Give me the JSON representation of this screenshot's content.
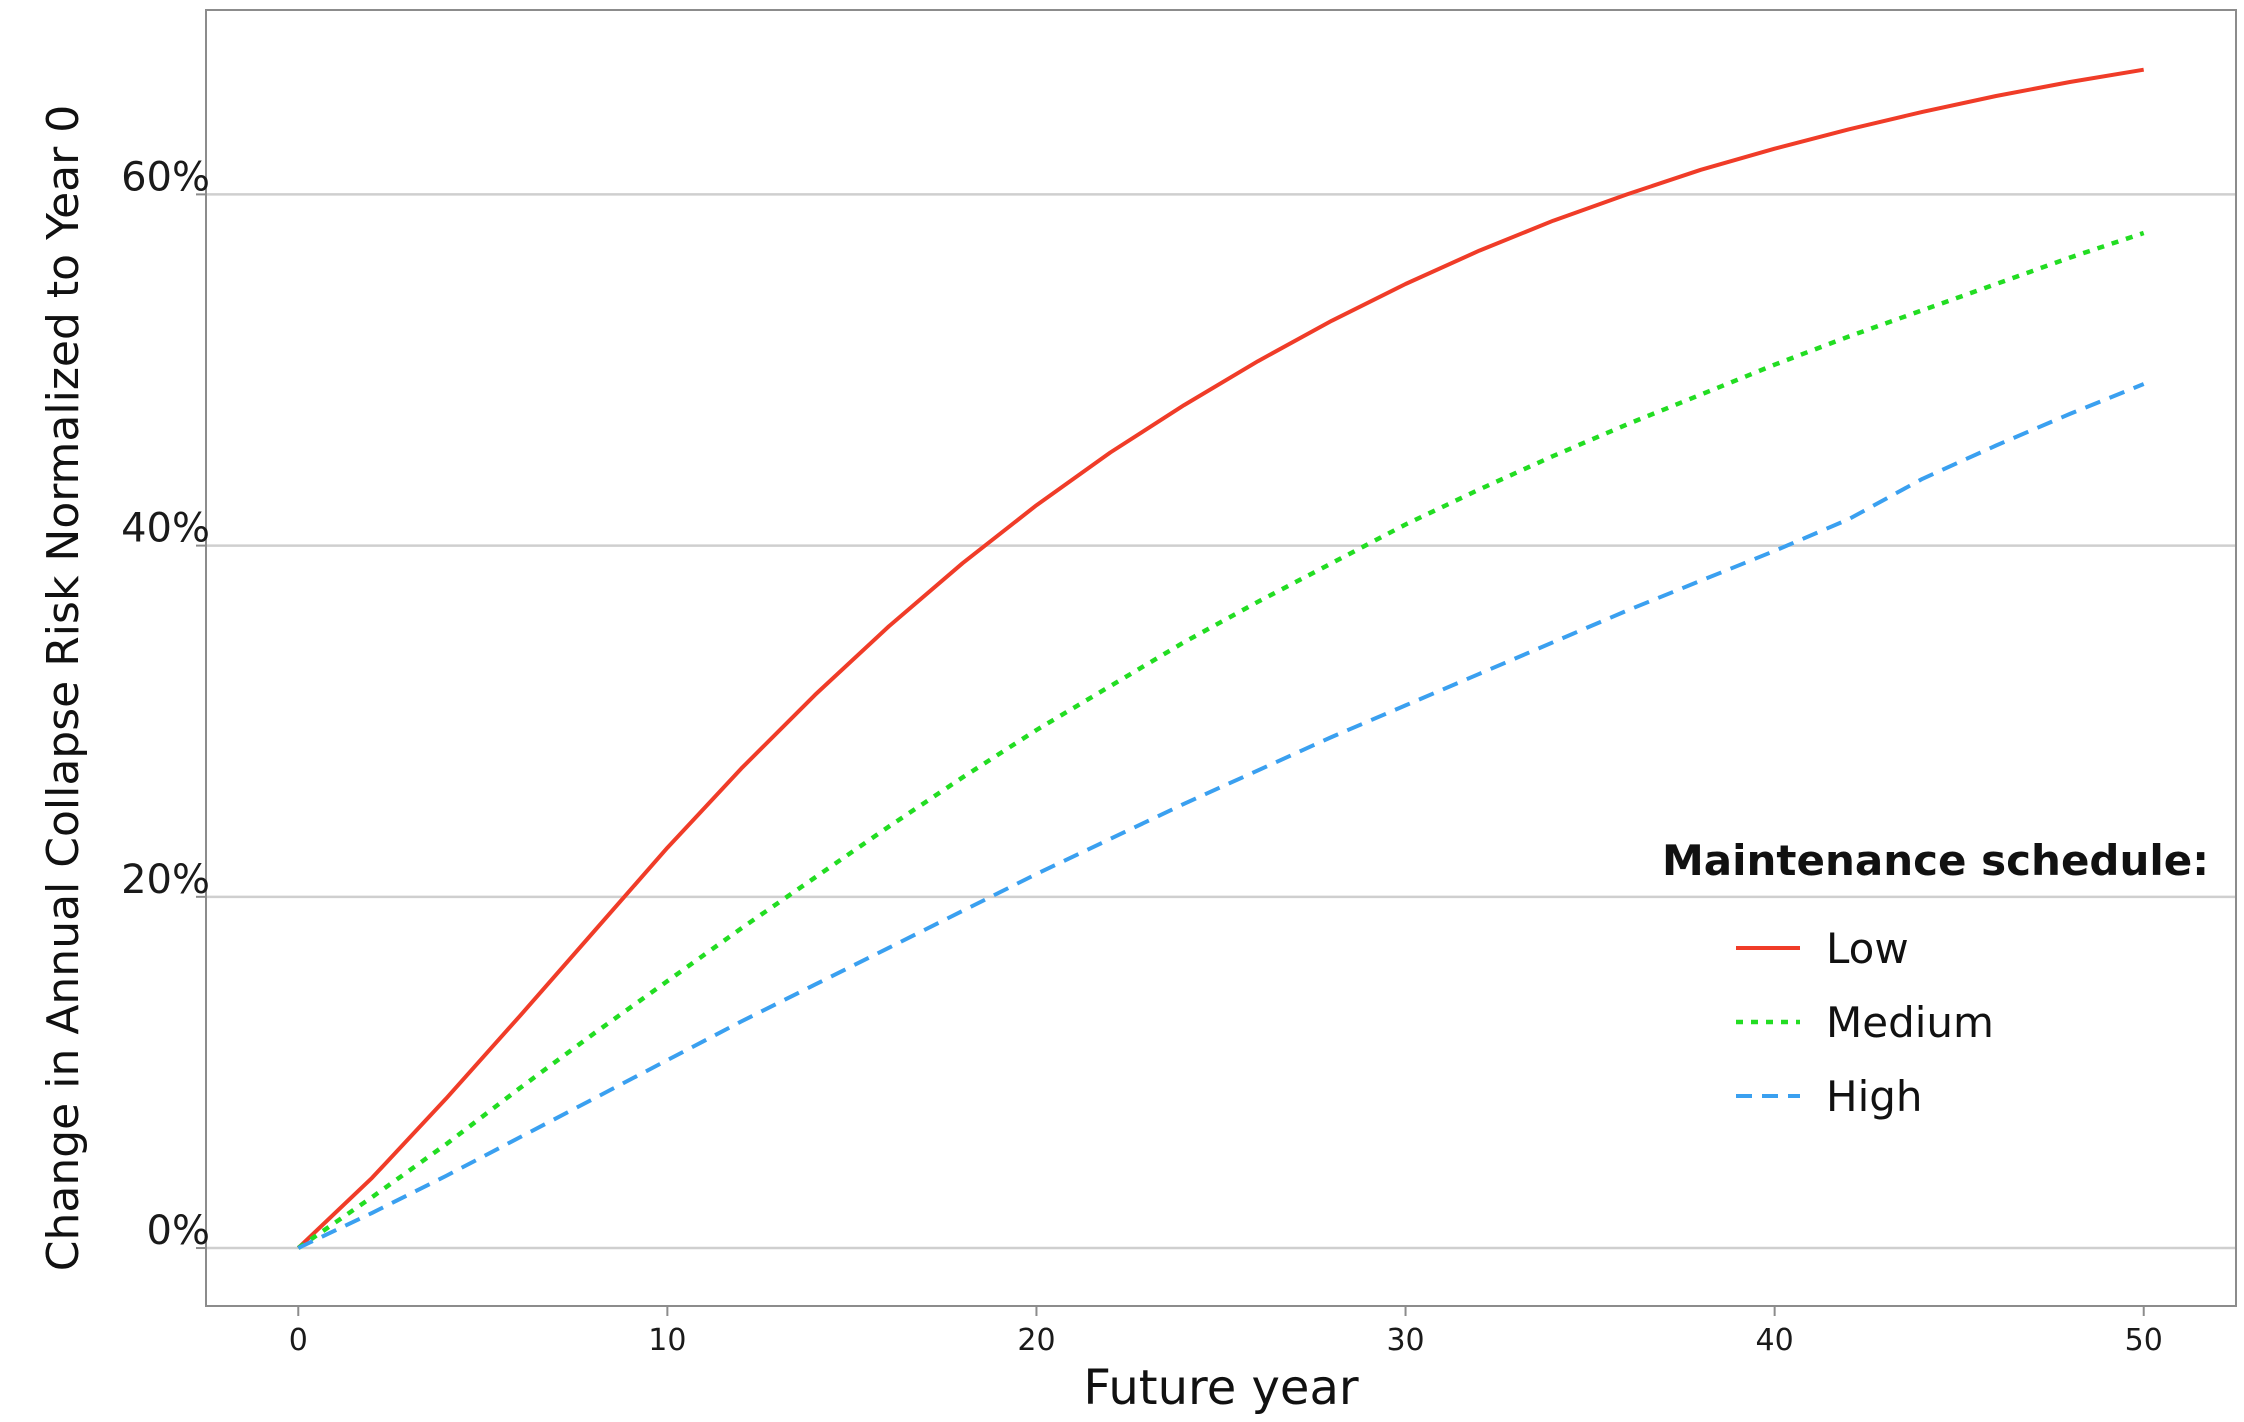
{
  "chart_data": {
    "type": "line",
    "title": "",
    "xlabel": "Future year",
    "ylabel": "Change in Annual Collapse Risk Normalized to Year 0",
    "xlim": [
      -2.5,
      52.5
    ],
    "ylim": [
      -3.3,
      70.5
    ],
    "x_ticks": [
      0,
      10,
      20,
      30,
      40,
      50
    ],
    "x_tick_labels": [
      "0",
      "10",
      "20",
      "30",
      "40",
      "50"
    ],
    "y_ticks": [
      0,
      20,
      40,
      60
    ],
    "y_tick_labels": [
      "0%",
      "20%",
      "40%",
      "60%"
    ],
    "grid": "horizontal",
    "legend": {
      "title": "Maintenance schedule:",
      "position": "right"
    },
    "x": [
      0,
      2,
      4,
      6,
      8,
      10,
      12,
      14,
      16,
      18,
      20,
      22,
      24,
      26,
      28,
      30,
      32,
      34,
      36,
      38,
      40,
      42,
      44,
      46,
      48,
      50
    ],
    "series": [
      {
        "name": "Low",
        "style": "solid",
        "color": "#f03c28",
        "values": [
          0,
          4.0,
          8.5,
          13.2,
          18.0,
          22.8,
          27.3,
          31.5,
          35.4,
          39.0,
          42.3,
          45.3,
          48.0,
          50.5,
          52.8,
          54.9,
          56.8,
          58.5,
          60.0,
          61.4,
          62.6,
          63.7,
          64.7,
          65.6,
          66.4,
          67.1
        ]
      },
      {
        "name": "Medium",
        "style": "dotted",
        "color": "#22dd22",
        "values": [
          0,
          2.9,
          5.9,
          9.1,
          12.2,
          15.2,
          18.2,
          21.1,
          24.0,
          26.8,
          29.5,
          32.0,
          34.5,
          36.8,
          39.0,
          41.2,
          43.2,
          45.1,
          46.9,
          48.6,
          50.3,
          51.9,
          53.4,
          54.9,
          56.4,
          57.8
        ]
      },
      {
        "name": "High",
        "style": "dashed",
        "color": "#3aa0f0",
        "values": [
          0,
          2.0,
          4.1,
          6.3,
          8.5,
          10.7,
          12.9,
          15.0,
          17.1,
          19.2,
          21.3,
          23.3,
          25.3,
          27.2,
          29.1,
          30.9,
          32.7,
          34.5,
          36.3,
          38.0,
          39.7,
          41.5,
          43.8,
          45.7,
          47.5,
          49.2
        ]
      }
    ]
  }
}
